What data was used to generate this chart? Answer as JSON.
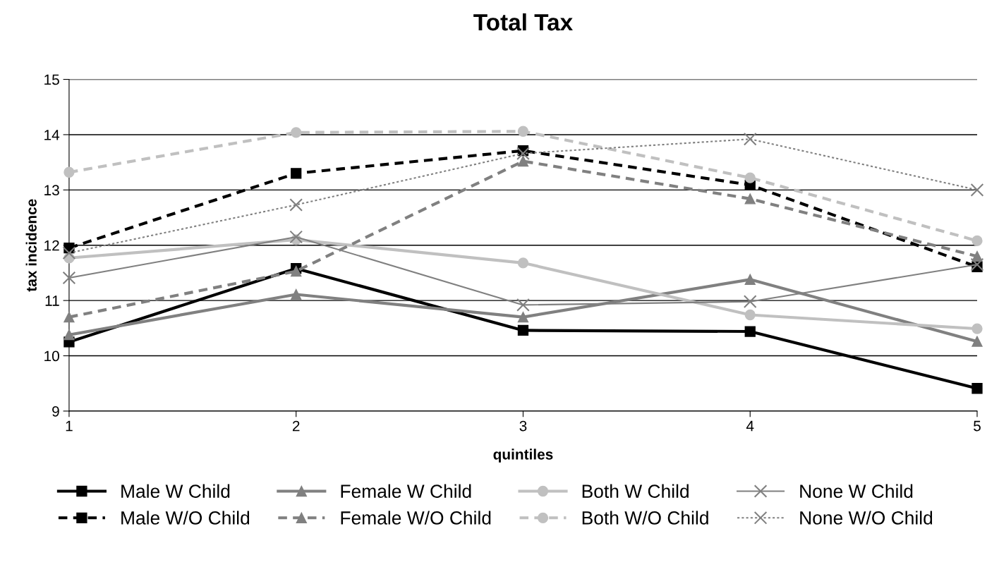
{
  "chart_data": {
    "type": "line",
    "title": "Total Tax",
    "xlabel": "quintiles",
    "ylabel": "tax incidence",
    "x": [
      1,
      2,
      3,
      4,
      5
    ],
    "xlim": [
      1,
      5
    ],
    "xticks": [
      1,
      2,
      3,
      4,
      5
    ],
    "ylim": [
      9,
      15
    ],
    "yticks": [
      9,
      10,
      11,
      12,
      13,
      14,
      15
    ],
    "grid": "y",
    "legend": "bottom",
    "series": [
      {
        "name": "Male W Child",
        "color": "#000000",
        "marker": "square",
        "line_style": "solid",
        "values": [
          10.25,
          11.58,
          10.46,
          10.44,
          9.41
        ]
      },
      {
        "name": "Female W Child",
        "color": "#808080",
        "marker": "triangle",
        "line_style": "solid",
        "values": [
          10.38,
          11.11,
          10.7,
          11.38,
          10.26
        ]
      },
      {
        "name": "Both W Child",
        "color": "#c0c0c0",
        "marker": "circle",
        "line_style": "solid",
        "values": [
          11.77,
          12.1,
          11.68,
          10.74,
          10.49
        ]
      },
      {
        "name": "None W Child",
        "color": "#808080",
        "marker": "cross",
        "line_style": "solid",
        "values": [
          11.41,
          12.15,
          10.92,
          10.98,
          11.65
        ]
      },
      {
        "name": "Male W/O Child",
        "color": "#000000",
        "marker": "square",
        "line_style": "dashed",
        "values": [
          11.95,
          13.3,
          13.71,
          13.09,
          11.61
        ]
      },
      {
        "name": "Female W/O Child",
        "color": "#808080",
        "marker": "triangle",
        "line_style": "dashed",
        "values": [
          10.7,
          11.53,
          13.52,
          12.84,
          11.8
        ]
      },
      {
        "name": "Both W/O Child",
        "color": "#c0c0c0",
        "marker": "circle",
        "line_style": "dashed",
        "values": [
          13.32,
          14.04,
          14.06,
          13.22,
          12.08
        ]
      },
      {
        "name": "None W/O Child",
        "color": "#808080",
        "marker": "cross",
        "line_style": "dotted",
        "values": [
          11.86,
          12.73,
          13.66,
          13.92,
          13.0
        ]
      }
    ]
  }
}
